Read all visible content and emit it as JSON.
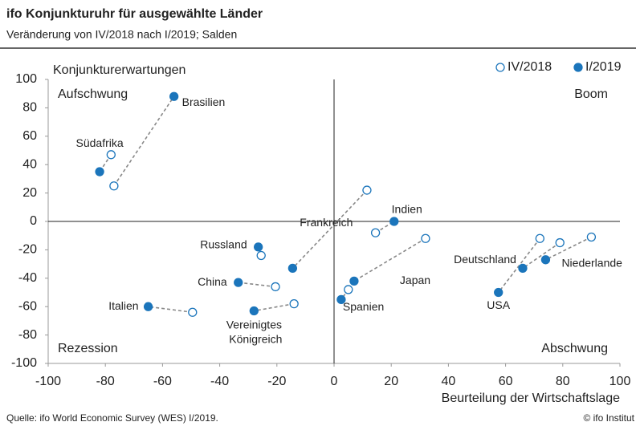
{
  "chart_data": {
    "type": "scatter",
    "title": "ifo Konjunkturuhr für ausgewählte Länder",
    "subtitle": "Veränderung von IV/2018 nach I/2019; Salden",
    "y_label": "Konjunkturerwartungen",
    "x_label": "Beurteilung der Wirtschaftslage",
    "source": "Quelle: ifo World Economic Survey (WES) I/2019.",
    "copyright": "© ifo Institut",
    "quadrants": [
      "Aufschwung",
      "Boom",
      "Rezession",
      "Abschwung"
    ],
    "labels": [
      "Brasilien",
      "Südafrika",
      "Frankreich",
      "Indien",
      "Japan",
      "Spanien",
      "Russland",
      "China",
      "Italien",
      "Vereinigtes Königreich",
      "Deutschland",
      "Niederlande",
      "USA"
    ],
    "series": [
      {
        "name": "IV/2018",
        "color": "#1b75bb",
        "filled": false,
        "x": [
          -77,
          -78,
          11.5,
          14.5,
          32,
          5,
          -25.5,
          -20.5,
          -49.5,
          -14,
          79,
          90,
          72
        ],
        "values": [
          25,
          47,
          22,
          -8,
          -12,
          -48,
          -24,
          -46,
          -64,
          -58,
          -15,
          -11,
          -12
        ]
      },
      {
        "name": "I/2019",
        "color": "#1b75bb",
        "filled": true,
        "x": [
          -56,
          -82,
          -14.5,
          21,
          7,
          2.5,
          -26.5,
          -33.5,
          -65,
          -28,
          66,
          74,
          57.5
        ],
        "values": [
          88,
          35,
          -33,
          0,
          -42,
          -55,
          -18,
          -43,
          -60,
          -63,
          -33,
          -27,
          -50
        ]
      }
    ],
    "xlim": [
      -100,
      100
    ],
    "xticks": [
      -100,
      -80,
      -60,
      -40,
      -20,
      0,
      20,
      40,
      60,
      80,
      100
    ],
    "ylim": [
      -100,
      100
    ],
    "yticks": [
      -100,
      -80,
      -60,
      -40,
      -20,
      0,
      20,
      40,
      60,
      80,
      100
    ]
  }
}
